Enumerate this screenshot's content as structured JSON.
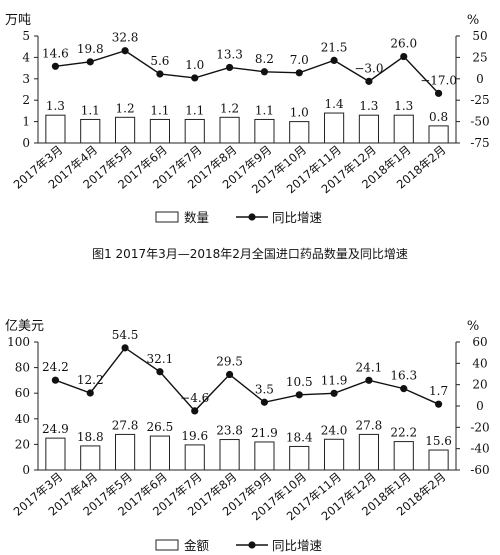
{
  "chart_data": [
    {
      "type": "bar+line",
      "title": "图1   2017年3月—2018年2月全国进口药品数量及同比增速",
      "categories": [
        "2017年3月",
        "2017年4月",
        "2017年5月",
        "2017年6月",
        "2017年7月",
        "2017年8月",
        "2017年9月",
        "2017年10月",
        "2017年11月",
        "2017年12月",
        "2018年1月",
        "2018年2月"
      ],
      "y_left": {
        "unit": "万吨",
        "ylim": [
          0,
          5
        ],
        "ticks": [
          "0",
          "1",
          "2",
          "3",
          "4",
          "5"
        ]
      },
      "y_right": {
        "unit": "%",
        "ylim": [
          -75,
          50
        ],
        "ticks": [
          "-75",
          "-50",
          "-25",
          "0",
          "25",
          "50"
        ]
      },
      "series": [
        {
          "name": "数量",
          "type": "bar",
          "axis": "left",
          "values": [
            1.3,
            1.1,
            1.2,
            1.1,
            1.1,
            1.2,
            1.1,
            1.0,
            1.4,
            1.3,
            1.3,
            0.8
          ],
          "labels": [
            "1.3",
            "1.1",
            "1.2",
            "1.1",
            "1.1",
            "1.2",
            "1.1",
            "1.0",
            "1.4",
            "1.3",
            "1.3",
            "0.8"
          ]
        },
        {
          "name": "同比增速",
          "type": "line",
          "axis": "right",
          "values": [
            14.6,
            19.8,
            32.8,
            5.6,
            1.0,
            13.3,
            8.2,
            7.0,
            21.5,
            -3.0,
            26.0,
            -17.0
          ],
          "labels": [
            "14.6",
            "19.8",
            "32.8",
            "5.6",
            "1.0",
            "13.3",
            "8.2",
            "7.0",
            "21.5",
            "−3.0",
            "26.0",
            "−17.0"
          ]
        }
      ],
      "grid": false,
      "legend": "bottom"
    },
    {
      "type": "bar+line",
      "title": "",
      "categories": [
        "2017年3月",
        "2017年4月",
        "2017年5月",
        "2017年6月",
        "2017年7月",
        "2017年8月",
        "2017年9月",
        "2017年10月",
        "2017年11月",
        "2017年12月",
        "2018年1月",
        "2018年2月"
      ],
      "y_left": {
        "unit": "亿美元",
        "ylim": [
          0,
          100
        ],
        "ticks": [
          "0",
          "20",
          "40",
          "60",
          "80",
          "100"
        ]
      },
      "y_right": {
        "unit": "%",
        "ylim": [
          -60,
          60
        ],
        "ticks": [
          "-60",
          "-40",
          "-20",
          "0",
          "20",
          "40",
          "60"
        ]
      },
      "series": [
        {
          "name": "金额",
          "type": "bar",
          "axis": "left",
          "values": [
            24.9,
            18.8,
            27.8,
            26.5,
            19.6,
            23.8,
            21.9,
            18.4,
            24.0,
            27.8,
            22.2,
            15.6
          ],
          "labels": [
            "24.9",
            "18.8",
            "27.8",
            "26.5",
            "19.6",
            "23.8",
            "21.9",
            "18.4",
            "24.0",
            "27.8",
            "22.2",
            "15.6"
          ]
        },
        {
          "name": "同比增速",
          "type": "line",
          "axis": "right",
          "values": [
            24.2,
            12.2,
            54.5,
            32.1,
            -4.6,
            29.5,
            3.5,
            10.5,
            11.9,
            24.1,
            16.3,
            1.7
          ],
          "labels": [
            "24.2",
            "12.2",
            "54.5",
            "32.1",
            "−4.6",
            "29.5",
            "3.5",
            "10.5",
            "11.9",
            "24.1",
            "16.3",
            "1.7"
          ]
        }
      ],
      "grid": false,
      "legend": "bottom"
    }
  ]
}
